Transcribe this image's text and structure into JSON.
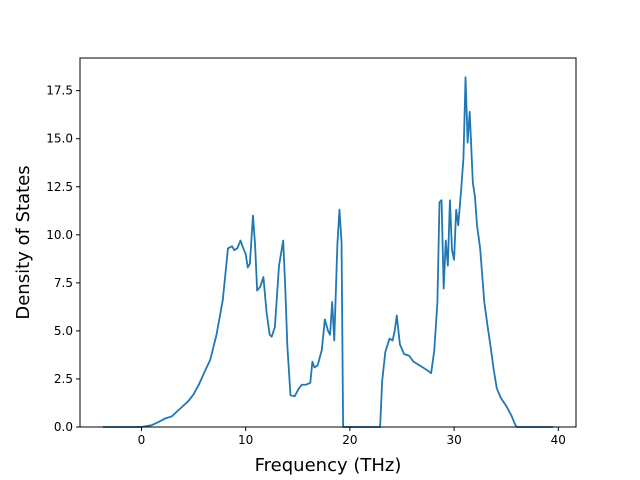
{
  "chart_data": {
    "type": "line",
    "title": "",
    "xlabel": "Frequency (THz)",
    "ylabel": "Density of States",
    "xlim": [
      -5.9,
      41.7
    ],
    "ylim": [
      0,
      19.2
    ],
    "xticks": [
      0,
      10,
      20,
      30,
      40
    ],
    "xtick_labels": [
      "0",
      "10",
      "20",
      "30",
      "40"
    ],
    "yticks": [
      0,
      2.5,
      5,
      7.5,
      10,
      12.5,
      15,
      17.5
    ],
    "ytick_labels": [
      "0.0",
      "2.5",
      "5.0",
      "7.5",
      "10.0",
      "12.5",
      "15.0",
      "17.5"
    ],
    "grid": false,
    "series": [
      {
        "color": "#1f77b4",
        "x": [
          -3.7,
          0.0,
          1.0,
          1.6,
          2.3,
          2.9,
          3.4,
          4.0,
          4.5,
          5.0,
          5.5,
          6.0,
          6.6,
          7.2,
          7.8,
          8.3,
          8.7,
          8.9,
          9.2,
          9.5,
          9.7,
          10.0,
          10.2,
          10.4,
          10.7,
          10.9,
          11.1,
          11.4,
          11.7,
          12.0,
          12.3,
          12.5,
          12.8,
          13.2,
          13.6,
          13.8,
          14.0,
          14.3,
          14.7,
          15.1,
          15.4,
          15.8,
          16.2,
          16.4,
          16.6,
          16.9,
          17.3,
          17.6,
          17.9,
          18.1,
          18.3,
          18.5,
          18.8,
          19.0,
          19.2,
          19.35,
          20.0,
          21.0,
          22.0,
          22.9,
          23.1,
          23.4,
          23.8,
          24.1,
          24.3,
          24.5,
          24.8,
          25.2,
          25.7,
          26.1,
          26.7,
          27.3,
          27.8,
          28.1,
          28.4,
          28.6,
          28.8,
          29.0,
          29.2,
          29.4,
          29.6,
          29.8,
          30.0,
          30.2,
          30.4,
          30.7,
          30.9,
          31.1,
          31.3,
          31.5,
          31.8,
          32.0,
          32.2,
          32.5,
          32.9,
          33.2,
          33.5,
          33.8,
          34.1,
          34.5,
          35.0,
          35.5,
          35.8,
          36.0,
          37.0,
          39.5
        ],
        "y": [
          0.0,
          0.0,
          0.1,
          0.25,
          0.45,
          0.55,
          0.8,
          1.1,
          1.35,
          1.7,
          2.2,
          2.8,
          3.5,
          4.8,
          6.6,
          9.3,
          9.4,
          9.2,
          9.3,
          9.7,
          9.4,
          9.0,
          8.3,
          8.5,
          11.0,
          9.5,
          7.1,
          7.3,
          7.8,
          6.0,
          4.8,
          4.7,
          5.2,
          8.4,
          9.7,
          7.2,
          4.2,
          1.65,
          1.6,
          2.0,
          2.2,
          2.2,
          2.3,
          3.4,
          3.1,
          3.2,
          4.0,
          5.6,
          5.0,
          4.8,
          6.5,
          4.5,
          9.5,
          11.3,
          9.6,
          0.0,
          0.0,
          0.0,
          0.0,
          0.0,
          2.4,
          3.9,
          4.6,
          4.5,
          5.0,
          5.8,
          4.3,
          3.8,
          3.7,
          3.4,
          3.2,
          3.0,
          2.8,
          4.0,
          6.5,
          11.7,
          11.8,
          7.2,
          9.7,
          8.4,
          11.8,
          9.2,
          8.7,
          11.3,
          10.5,
          12.5,
          14.0,
          18.2,
          14.8,
          16.4,
          12.7,
          12.0,
          10.5,
          9.3,
          6.5,
          5.3,
          4.2,
          3.0,
          2.0,
          1.5,
          1.1,
          0.6,
          0.2,
          0.0,
          0.0,
          0.0
        ]
      }
    ]
  }
}
